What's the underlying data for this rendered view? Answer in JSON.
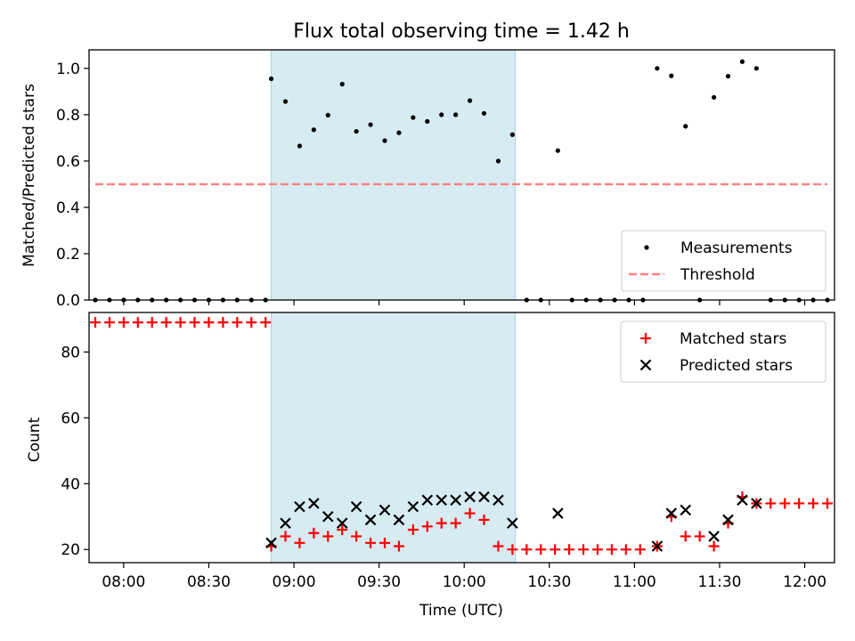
{
  "chart_data": [
    {
      "type": "scatter",
      "title": "Flux total observing time = 1.42 h",
      "ylabel": "Matched/Predicted stars",
      "ylim": [
        0,
        1.08
      ],
      "yticks": [
        "0.0",
        "0.2",
        "0.4",
        "0.6",
        "0.8",
        "1.0"
      ],
      "grid": false,
      "legend_position": "lower-right",
      "shaded_interval": [
        "08:52",
        "10:18"
      ],
      "series": [
        {
          "name": "Measurements",
          "color": "#000000",
          "marker": "dot",
          "points": [
            [
              "07:50",
              0.0
            ],
            [
              "07:55",
              0.0
            ],
            [
              "08:00",
              0.0
            ],
            [
              "08:05",
              0.0
            ],
            [
              "08:10",
              0.0
            ],
            [
              "08:15",
              0.0
            ],
            [
              "08:20",
              0.0
            ],
            [
              "08:25",
              0.0
            ],
            [
              "08:30",
              0.0
            ],
            [
              "08:35",
              0.0
            ],
            [
              "08:40",
              0.0
            ],
            [
              "08:45",
              0.0
            ],
            [
              "08:50",
              0.0
            ],
            [
              "08:52",
              0.955
            ],
            [
              "08:57",
              0.857
            ],
            [
              "09:02",
              0.665
            ],
            [
              "09:07",
              0.735
            ],
            [
              "09:12",
              0.798
            ],
            [
              "09:17",
              0.932
            ],
            [
              "09:22",
              0.728
            ],
            [
              "09:27",
              0.757
            ],
            [
              "09:32",
              0.688
            ],
            [
              "09:37",
              0.722
            ],
            [
              "09:42",
              0.788
            ],
            [
              "09:47",
              0.771
            ],
            [
              "09:52",
              0.8
            ],
            [
              "09:57",
              0.8
            ],
            [
              "10:02",
              0.861
            ],
            [
              "10:07",
              0.806
            ],
            [
              "10:12",
              0.6
            ],
            [
              "10:17",
              0.714
            ],
            [
              "10:22",
              0.0
            ],
            [
              "10:27",
              0.0
            ],
            [
              "10:33",
              0.645
            ],
            [
              "10:38",
              0.0
            ],
            [
              "10:43",
              0.0
            ],
            [
              "10:48",
              0.0
            ],
            [
              "10:53",
              0.0
            ],
            [
              "10:58",
              0.0
            ],
            [
              "11:03",
              0.0
            ],
            [
              "11:08",
              1.0
            ],
            [
              "11:13",
              0.968
            ],
            [
              "11:18",
              0.75
            ],
            [
              "11:23",
              0.0
            ],
            [
              "11:28",
              0.875
            ],
            [
              "11:33",
              0.966
            ],
            [
              "11:38",
              1.029
            ],
            [
              "11:43",
              1.0
            ],
            [
              "11:48",
              0.0
            ],
            [
              "11:53",
              0.0
            ],
            [
              "11:58",
              0.0
            ],
            [
              "12:03",
              0.0
            ],
            [
              "12:08",
              0.0
            ]
          ]
        },
        {
          "name": "Threshold",
          "color": "#ff7f7f",
          "marker": "dashed-line",
          "points": [
            [
              "07:50",
              0.5
            ],
            [
              "12:08",
              0.5
            ]
          ]
        }
      ]
    },
    {
      "type": "scatter",
      "xlabel": "Time (UTC)",
      "ylabel": "Count",
      "ylim": [
        16,
        92
      ],
      "yticks": [
        "20",
        "40",
        "60",
        "80"
      ],
      "xticks": [
        "08:00",
        "08:30",
        "09:00",
        "09:30",
        "10:00",
        "10:30",
        "11:00",
        "11:30",
        "12:00"
      ],
      "grid": false,
      "legend_position": "upper-right",
      "shaded_interval": [
        "08:52",
        "10:18"
      ],
      "series": [
        {
          "name": "Matched stars",
          "color": "#ff0000",
          "marker": "plus",
          "points": [
            [
              "07:50",
              89
            ],
            [
              "07:55",
              89
            ],
            [
              "08:00",
              89
            ],
            [
              "08:05",
              89
            ],
            [
              "08:10",
              89
            ],
            [
              "08:15",
              89
            ],
            [
              "08:20",
              89
            ],
            [
              "08:25",
              89
            ],
            [
              "08:30",
              89
            ],
            [
              "08:35",
              89
            ],
            [
              "08:40",
              89
            ],
            [
              "08:45",
              89
            ],
            [
              "08:50",
              89
            ],
            [
              "08:52",
              21
            ],
            [
              "08:57",
              24
            ],
            [
              "09:02",
              22
            ],
            [
              "09:07",
              25
            ],
            [
              "09:12",
              24
            ],
            [
              "09:17",
              26
            ],
            [
              "09:22",
              24
            ],
            [
              "09:27",
              22
            ],
            [
              "09:32",
              22
            ],
            [
              "09:37",
              21
            ],
            [
              "09:42",
              26
            ],
            [
              "09:47",
              27
            ],
            [
              "09:52",
              28
            ],
            [
              "09:57",
              28
            ],
            [
              "10:02",
              31
            ],
            [
              "10:07",
              29
            ],
            [
              "10:12",
              21
            ],
            [
              "10:17",
              20
            ],
            [
              "10:22",
              20
            ],
            [
              "10:27",
              20
            ],
            [
              "10:32",
              20
            ],
            [
              "10:37",
              20
            ],
            [
              "10:42",
              20
            ],
            [
              "10:47",
              20
            ],
            [
              "10:52",
              20
            ],
            [
              "10:57",
              20
            ],
            [
              "11:02",
              20
            ],
            [
              "11:08",
              21
            ],
            [
              "11:13",
              30
            ],
            [
              "11:18",
              24
            ],
            [
              "11:23",
              24
            ],
            [
              "11:28",
              21
            ],
            [
              "11:33",
              28
            ],
            [
              "11:38",
              36
            ],
            [
              "11:43",
              34
            ],
            [
              "11:48",
              34
            ],
            [
              "11:53",
              34
            ],
            [
              "11:58",
              34
            ],
            [
              "12:03",
              34
            ],
            [
              "12:08",
              34
            ]
          ]
        },
        {
          "name": "Predicted stars",
          "color": "#000000",
          "marker": "x",
          "points": [
            [
              "08:52",
              22
            ],
            [
              "08:57",
              28
            ],
            [
              "09:02",
              33
            ],
            [
              "09:07",
              34
            ],
            [
              "09:12",
              30
            ],
            [
              "09:17",
              28
            ],
            [
              "09:22",
              33
            ],
            [
              "09:27",
              29
            ],
            [
              "09:32",
              32
            ],
            [
              "09:37",
              29
            ],
            [
              "09:42",
              33
            ],
            [
              "09:47",
              35
            ],
            [
              "09:52",
              35
            ],
            [
              "09:57",
              35
            ],
            [
              "10:02",
              36
            ],
            [
              "10:07",
              36
            ],
            [
              "10:12",
              35
            ],
            [
              "10:17",
              28
            ],
            [
              "10:33",
              31
            ],
            [
              "11:08",
              21
            ],
            [
              "11:13",
              31
            ],
            [
              "11:18",
              32
            ],
            [
              "11:28",
              24
            ],
            [
              "11:33",
              29
            ],
            [
              "11:38",
              35
            ],
            [
              "11:43",
              34
            ]
          ]
        }
      ]
    }
  ]
}
